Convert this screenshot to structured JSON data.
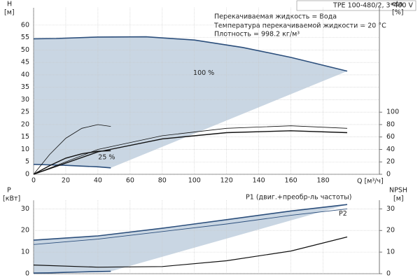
{
  "chart_data": [
    {
      "type": "line",
      "title": "TPE 100-480/2, 3*400 V",
      "annotations": [
        "Перекачиваемая жидкость = Вода",
        "Температура перекачиваемой жидкости = 20 °C",
        "Плотность = 998.2 кг/м³"
      ],
      "xlabel": "Q [м³/ч]",
      "ylabel": "H",
      "yunit": "[м]",
      "y2label": "eta",
      "y2unit": "[%]",
      "xlim": [
        0,
        215
      ],
      "xticks": [
        0,
        20,
        40,
        60,
        80,
        100,
        120,
        140,
        160,
        180
      ],
      "ylim": [
        0,
        67
      ],
      "yticks": [
        0,
        5,
        10,
        15,
        20,
        25,
        30,
        35,
        40,
        45,
        50,
        55,
        60
      ],
      "y2lim": [
        0,
        268
      ],
      "y2ticks": [
        0,
        20,
        40,
        60,
        80,
        100
      ],
      "grid": true,
      "fill": "#c9d6e3",
      "series": [
        {
          "name": "100 %",
          "color": "#2c4f7c",
          "x": [
            0,
            14,
            40,
            70,
            100,
            130,
            160,
            195
          ],
          "values": [
            54.5,
            54.6,
            55.2,
            55.3,
            54,
            51,
            47,
            41.5
          ]
        },
        {
          "name": "25 %",
          "color": "#2c4f7c",
          "x": [
            0,
            10,
            20,
            30,
            40,
            48
          ],
          "values": [
            4,
            3.8,
            3.6,
            3.3,
            3,
            2.6
          ]
        },
        {
          "color": "#111111",
          "axis": "y2",
          "x": [
            0,
            40,
            80,
            120,
            160,
            195
          ],
          "values": [
            0,
            36,
            57,
            67,
            70,
            67
          ]
        },
        {
          "color": "#111111",
          "axis": "y2",
          "x": [
            0,
            40,
            80,
            120,
            160,
            195
          ],
          "values": [
            0,
            40,
            62,
            74,
            78,
            74
          ]
        },
        {
          "color": "#111111",
          "axis": "y2",
          "x": [
            0,
            10,
            20,
            30,
            40,
            48
          ],
          "values": [
            0,
            32,
            58,
            74,
            80,
            77
          ]
        },
        {
          "color": "#111111",
          "axis": "y2",
          "x": [
            0,
            10,
            20,
            30,
            40,
            48
          ],
          "values": [
            0,
            14,
            26,
            33,
            37,
            38
          ]
        }
      ]
    },
    {
      "type": "line",
      "ylabel": "P",
      "yunit": "[кВт]",
      "y2label": "NPSH",
      "y2unit": "[м]",
      "xlim": [
        0,
        215
      ],
      "ylim": [
        0,
        34
      ],
      "yticks": [
        0,
        10,
        20,
        30
      ],
      "y2lim": [
        0,
        34
      ],
      "y2ticks": [
        0,
        10,
        20,
        30
      ],
      "grid": true,
      "fill": "#c9d6e3",
      "series": [
        {
          "name": "P1 (двиг.+преобр-ль частоты)",
          "color": "#2c4f7c",
          "x": [
            0,
            40,
            80,
            120,
            160,
            195
          ],
          "values": [
            15.5,
            17.5,
            21,
            25,
            29,
            32
          ]
        },
        {
          "color": "#2c4f7c",
          "x": [
            0,
            10,
            20,
            30,
            40,
            48
          ],
          "values": [
            0.3,
            0.4,
            0.6,
            0.8,
            1,
            1.1
          ]
        },
        {
          "name": "P2",
          "color": "#2c4f7c",
          "x": [
            0,
            40,
            80,
            120,
            160,
            195
          ],
          "values": [
            13.5,
            16,
            19.5,
            23,
            27,
            30
          ]
        },
        {
          "color": "#111111",
          "axis": "y2",
          "x": [
            0,
            40,
            80,
            120,
            160,
            195
          ],
          "values": [
            4,
            3,
            3.3,
            6,
            10.5,
            17
          ]
        }
      ]
    }
  ]
}
